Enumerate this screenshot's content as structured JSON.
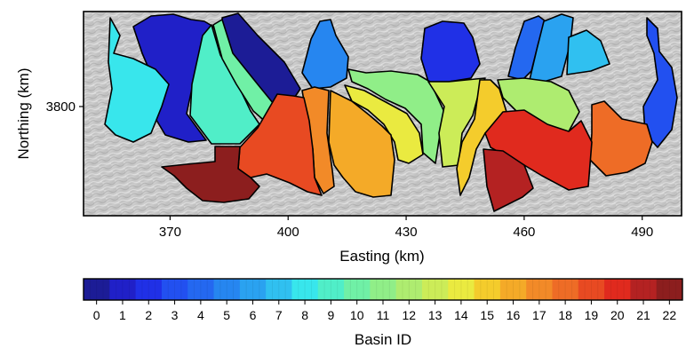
{
  "map": {
    "xlabel": "Easting (km)",
    "ylabel": "Northing (km)",
    "xticks": [
      370,
      400,
      430,
      460,
      490
    ],
    "yticks": [
      3800
    ],
    "xlim": [
      348,
      500
    ],
    "basemap": "hillshade-relief",
    "basin_count": 23
  },
  "colorbar": {
    "label": "Basin ID",
    "ticks": [
      0,
      1,
      2,
      3,
      4,
      5,
      6,
      7,
      8,
      9,
      10,
      11,
      12,
      13,
      14,
      15,
      16,
      17,
      18,
      19,
      20,
      21,
      22
    ],
    "colormap": "jet",
    "colors": [
      "#1c1c96",
      "#2020c8",
      "#2030e6",
      "#2250f0",
      "#2468f0",
      "#2686f0",
      "#2aa2f0",
      "#30c0f0",
      "#38e6ec",
      "#50eec8",
      "#70f0a6",
      "#90ee88",
      "#aeec70",
      "#ccec58",
      "#eaea40",
      "#f4cc2c",
      "#f4aa28",
      "#f28a28",
      "#ee6c26",
      "#e84a22",
      "#e02a1e",
      "#b42222",
      "#8c1e1e"
    ]
  },
  "basins": [
    {
      "id": 0,
      "color": "#1c1c96"
    },
    {
      "id": 1,
      "color": "#2020c8"
    },
    {
      "id": 2,
      "color": "#2030e6"
    },
    {
      "id": 3,
      "color": "#2250f0"
    },
    {
      "id": 4,
      "color": "#2468f0"
    },
    {
      "id": 5,
      "color": "#2686f0"
    },
    {
      "id": 6,
      "color": "#2aa2f0"
    },
    {
      "id": 7,
      "color": "#30c0f0"
    },
    {
      "id": 8,
      "color": "#38e6ec"
    },
    {
      "id": 9,
      "color": "#50eec8"
    },
    {
      "id": 10,
      "color": "#70f0a6"
    },
    {
      "id": 11,
      "color": "#90ee88"
    },
    {
      "id": 12,
      "color": "#aeec70"
    },
    {
      "id": 13,
      "color": "#ccec58"
    },
    {
      "id": 14,
      "color": "#eaea40"
    },
    {
      "id": 15,
      "color": "#f4cc2c"
    },
    {
      "id": 16,
      "color": "#f4aa28"
    },
    {
      "id": 17,
      "color": "#f28a28"
    },
    {
      "id": 18,
      "color": "#ee6c26"
    },
    {
      "id": 19,
      "color": "#e84a22"
    },
    {
      "id": 20,
      "color": "#e02a1e"
    },
    {
      "id": 21,
      "color": "#b42222"
    },
    {
      "id": 22,
      "color": "#8c1e1e"
    }
  ]
}
